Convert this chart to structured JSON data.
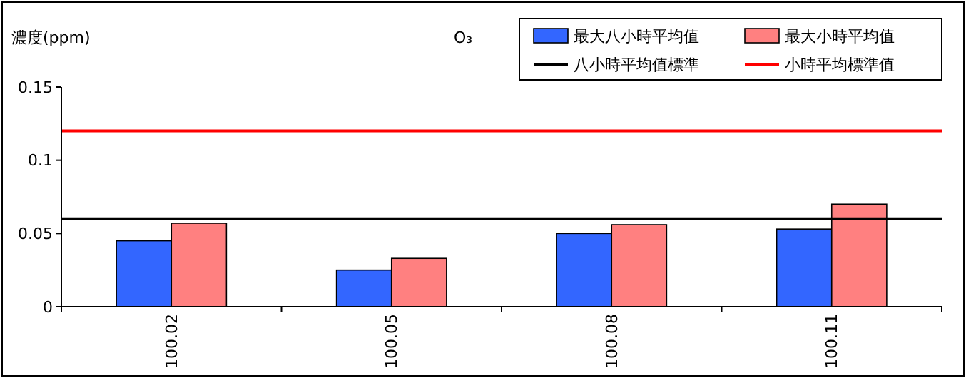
{
  "chart_data": {
    "type": "bar",
    "title": "O₃",
    "ylabel": "濃度(ppm)",
    "categories": [
      "100.02",
      "100.05",
      "100.08",
      "100.11"
    ],
    "series": [
      {
        "name": "最大八小時平均值",
        "color": "#3366ff",
        "values": [
          0.045,
          0.025,
          0.05,
          0.053
        ]
      },
      {
        "name": "最大小時平均值",
        "color": "#ff8080",
        "values": [
          0.057,
          0.033,
          0.056,
          0.07
        ]
      }
    ],
    "ref_lines": [
      {
        "axis": "y",
        "value": 0.06,
        "label": "八小時平均值標準",
        "color": "#000000"
      },
      {
        "axis": "y",
        "value": 0.12,
        "label": "小時平均標準值",
        "color": "#ff0000"
      }
    ],
    "ylim": [
      0,
      0.15
    ],
    "yticks": [
      0,
      0.05,
      0.1,
      0.15
    ],
    "legend": "top right"
  }
}
